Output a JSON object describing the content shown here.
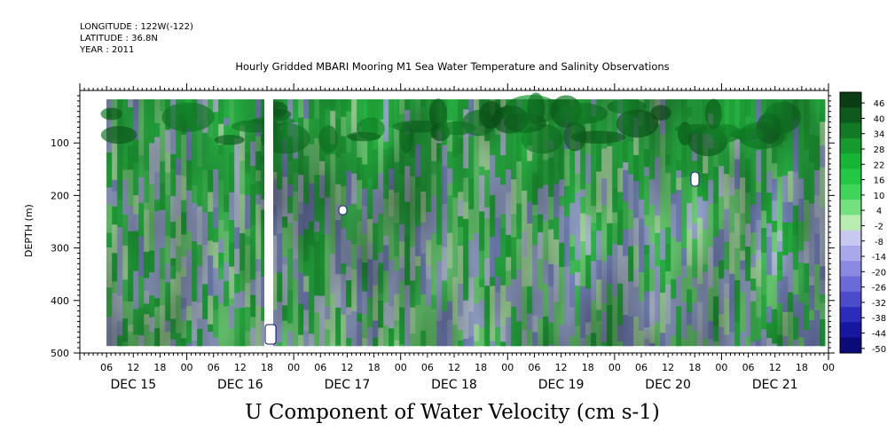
{
  "header": {
    "longitude": "LONGITUDE : 122W(-122)",
    "latitude": "LATITUDE : 36.8N",
    "year": "YEAR : 2011"
  },
  "title": "Hourly Gridded MBARI Mooring M1 Sea Water Temperature and Salinity Observations",
  "bottom_title": "U Component of Water Velocity (cm s-1)",
  "chart_data": {
    "type": "heatmap",
    "title": "Hourly Gridded MBARI Mooring M1 Sea Water Temperature and Salinity Observations",
    "variable": "U Component of Water Velocity (cm s-1)",
    "xlabel": "",
    "ylabel": "DEPTH (m)",
    "x_range_hours": [
      0,
      168
    ],
    "x_day_labels": [
      "DEC 15",
      "DEC 16",
      "DEC 17",
      "DEC 18",
      "DEC 19",
      "DEC 20",
      "DEC 21"
    ],
    "x_hour_ticks": [
      "06",
      "12",
      "18",
      "00"
    ],
    "y_range": [
      0,
      500
    ],
    "y_ticks": [
      100,
      200,
      300,
      400,
      500
    ],
    "y_inverted": true,
    "colorbar_levels": [
      46,
      40,
      34,
      28,
      22,
      16,
      10,
      4,
      -2,
      -8,
      -14,
      -20,
      -26,
      -32,
      -38,
      -44,
      -50
    ],
    "colorbar_colors": [
      "#0b3d14",
      "#0e5a1d",
      "#117a25",
      "#149a2d",
      "#17b536",
      "#22c844",
      "#3fd45a",
      "#74e07e",
      "#b8ecb0",
      "#c8c8f0",
      "#a8a8ea",
      "#8a8ae2",
      "#6b6bd8",
      "#4b4bcc",
      "#2c2cbc",
      "#1616a0",
      "#0a0a78"
    ],
    "data_start_hour": 6,
    "gap_hour": 42
  }
}
